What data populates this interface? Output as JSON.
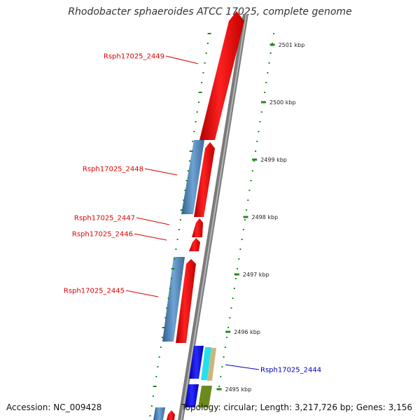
{
  "title": "Rhodobacter sphaeroides ATCC 17025, complete genome",
  "accession": "Accession: NC_009428",
  "topology": "Topology: circular; Length: 3,217,726 bp; Genes: 3,156",
  "colors": {
    "backbone": "#777777",
    "forward_gene": "#ee1111",
    "reverse_gene": "#4a7fb0",
    "highlight_gene": "#1111ee",
    "cyan_gene": "#22e0f0",
    "tan_gene": "#c8b880",
    "olive_gene": "#6b8a1e",
    "ticks": "#1e8a1e",
    "label_red": "#dd0000",
    "label_blue": "#0000bb"
  },
  "tick_labels": [
    "2501 kbp",
    "2500 kbp",
    "2499 kbp",
    "2498 kbp",
    "2497 kbp",
    "2496 kbp",
    "2495 kbp"
  ],
  "gene_labels": [
    {
      "text": "Rsph17025_2449",
      "color": "red"
    },
    {
      "text": "Rsph17025_2448",
      "color": "red"
    },
    {
      "text": "Rsph17025_2447",
      "color": "red"
    },
    {
      "text": "Rsph17025_2446",
      "color": "red"
    },
    {
      "text": "Rsph17025_2445",
      "color": "red"
    },
    {
      "text": "Rsph17025_2444",
      "color": "blue"
    }
  ]
}
